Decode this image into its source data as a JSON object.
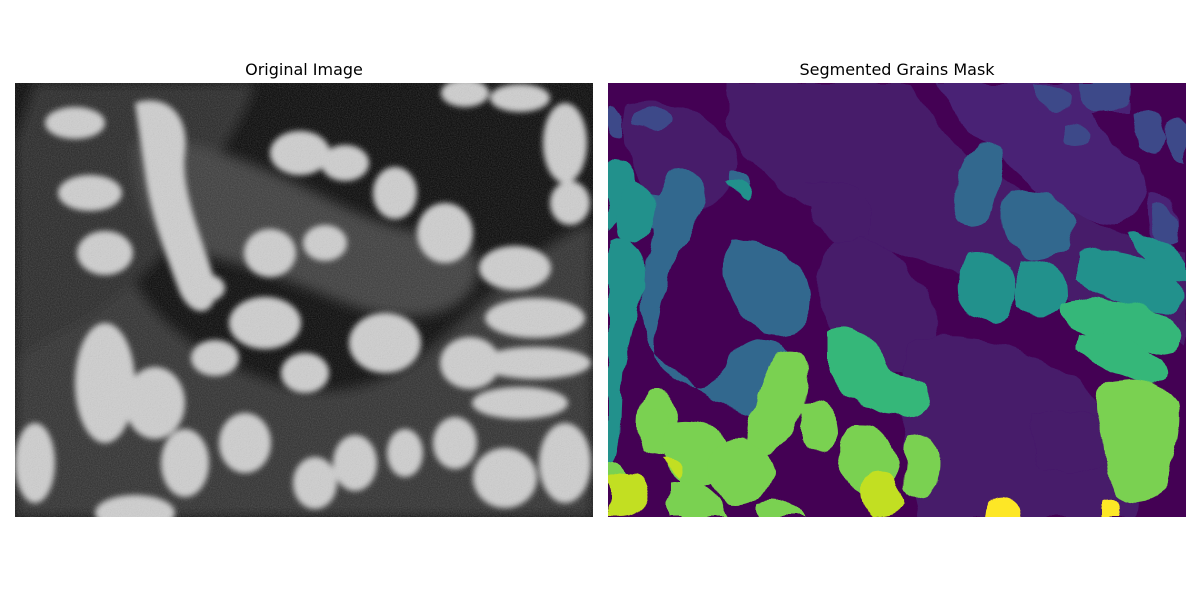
{
  "figure": {
    "left_title": "Original Image",
    "right_title": "Segmented Grains Mask"
  },
  "colors": {
    "background": "#ffffff",
    "grayscale_dark": "#050505",
    "grayscale_light": "#e8e8e8",
    "viridis_background": "#440154",
    "viridis_purple": "#482475",
    "viridis_blue": "#31688e",
    "viridis_teal": "#21918c",
    "viridis_green": "#35b779",
    "viridis_lightgreen": "#8fd744",
    "viridis_yellowgreen": "#c2df23",
    "viridis_yellow": "#fde725"
  }
}
